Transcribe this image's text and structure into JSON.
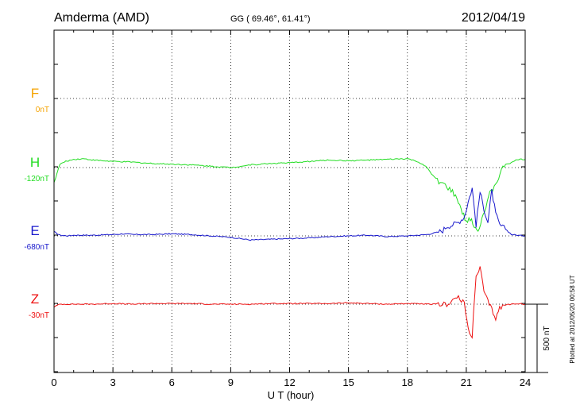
{
  "header": {
    "station": "Amderma (AMD)",
    "coords": "GG ( 69.46°,  61.41°)",
    "date": "2012/04/19"
  },
  "footer_note": "Plotted at 2012/05/20 00:58 UT",
  "chart_data": {
    "type": "line",
    "xlabel": "U T (hour)",
    "xlim": [
      0,
      24
    ],
    "xticks": [
      "0",
      "3",
      "6",
      "9",
      "12",
      "15",
      "18",
      "21",
      "24"
    ],
    "grid": true,
    "scale_bar": "500 nT",
    "series": [
      {
        "name": "F",
        "baseline_label": "0nT",
        "color": "#f5a300",
        "x": [],
        "y": []
      },
      {
        "name": "H",
        "baseline_label": "-120nT",
        "color": "#22dd22",
        "x": [
          0,
          0.3,
          0.6,
          1.0,
          1.5,
          2.0,
          3.0,
          4.0,
          5.0,
          6.0,
          7.0,
          8.0,
          9.0,
          10.0,
          11.0,
          12.0,
          13.0,
          14.0,
          15.0,
          16.0,
          17.0,
          18.0,
          18.5,
          19.0,
          19.3,
          19.6,
          20.0,
          20.3,
          20.6,
          20.8,
          21.0,
          21.2,
          21.4,
          21.6,
          21.8,
          22.0,
          22.2,
          22.5,
          22.8,
          23.0,
          23.3,
          23.6,
          24.0
        ],
        "y": [
          -110,
          25,
          45,
          60,
          65,
          55,
          45,
          40,
          30,
          25,
          20,
          10,
          0,
          20,
          30,
          35,
          45,
          55,
          50,
          55,
          60,
          65,
          45,
          0,
          -60,
          -100,
          -140,
          -180,
          -250,
          -330,
          -400,
          -380,
          -420,
          -470,
          -360,
          -300,
          -190,
          -120,
          -20,
          25,
          35,
          60,
          60
        ]
      },
      {
        "name": "E",
        "baseline_label": "-680nT",
        "color": "#1818cc",
        "x": [
          0,
          0.3,
          0.7,
          1.0,
          2.0,
          3.0,
          3.5,
          4.0,
          5.0,
          6.0,
          7.0,
          8.0,
          9.0,
          10.0,
          11.0,
          12.0,
          13.0,
          14.0,
          15.0,
          16.0,
          17.0,
          18.0,
          18.5,
          19.0,
          19.5,
          19.8,
          20.0,
          20.3,
          20.6,
          20.9,
          21.1,
          21.3,
          21.5,
          21.7,
          21.9,
          22.1,
          22.3,
          22.5,
          22.7,
          23.0,
          23.3,
          23.6,
          24.0
        ],
        "y": [
          30,
          5,
          0,
          5,
          5,
          10,
          15,
          10,
          10,
          15,
          10,
          0,
          -10,
          -30,
          -25,
          -20,
          -15,
          -5,
          0,
          5,
          -5,
          0,
          5,
          10,
          25,
          40,
          70,
          80,
          100,
          140,
          250,
          350,
          80,
          320,
          200,
          100,
          330,
          160,
          80,
          50,
          10,
          5,
          0
        ]
      },
      {
        "name": "Z",
        "baseline_label": "-30nT",
        "color": "#ee1111",
        "x": [
          0,
          0.3,
          1.0,
          2.0,
          3.0,
          4.0,
          5.0,
          6.0,
          7.0,
          8.0,
          9.0,
          10.0,
          11.0,
          12.0,
          13.0,
          14.0,
          15.0,
          16.0,
          17.0,
          18.0,
          19.0,
          19.5,
          20.0,
          20.3,
          20.6,
          20.9,
          21.1,
          21.3,
          21.5,
          21.7,
          21.9,
          22.1,
          22.3,
          22.5,
          22.7,
          23.0,
          23.3,
          23.6,
          24.0
        ],
        "y": [
          -20,
          0,
          0,
          0,
          5,
          0,
          5,
          5,
          5,
          0,
          0,
          0,
          5,
          5,
          5,
          5,
          10,
          5,
          0,
          5,
          0,
          0,
          0,
          30,
          50,
          0,
          -180,
          -230,
          200,
          270,
          90,
          20,
          -40,
          -100,
          -30,
          -5,
          0,
          5,
          0
        ]
      }
    ]
  }
}
